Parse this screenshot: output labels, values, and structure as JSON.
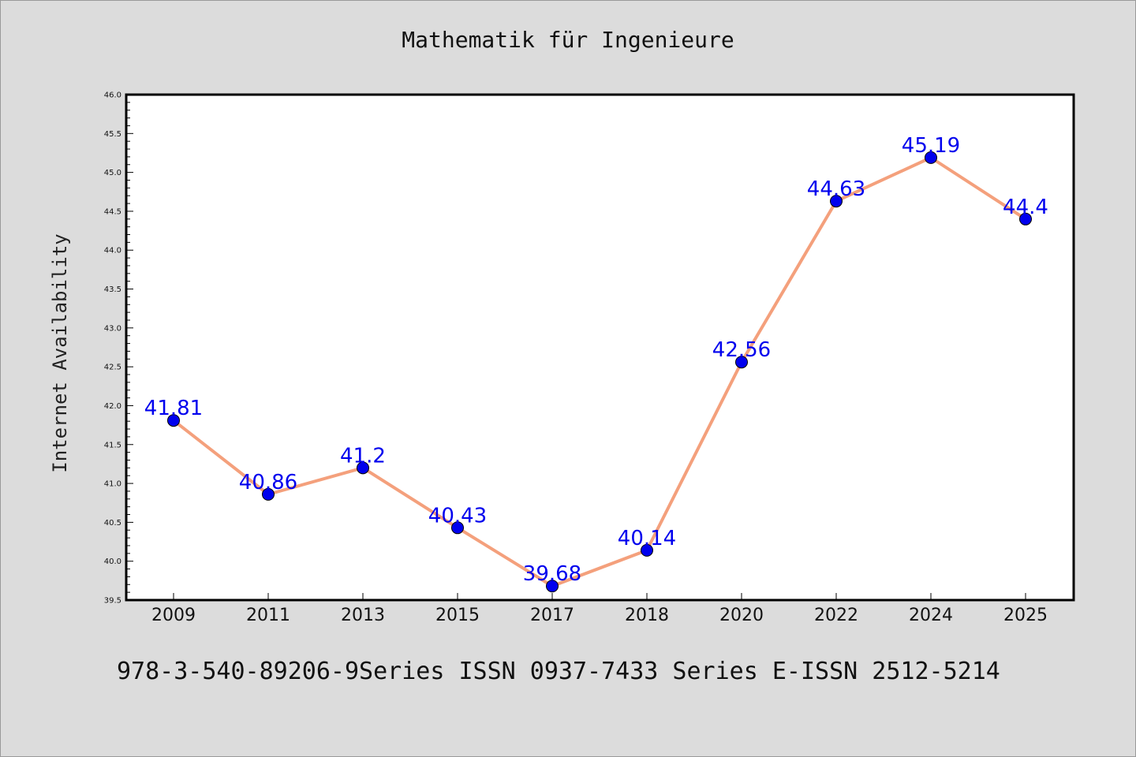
{
  "chart_data": {
    "type": "line",
    "title": "Mathematik für Ingenieure",
    "ylabel": "Internet Availability",
    "xlabel": "",
    "categories": [
      "2009",
      "2011",
      "2013",
      "2015",
      "2017",
      "2018",
      "2020",
      "2022",
      "2024",
      "2025"
    ],
    "series": [
      {
        "values": [
          41.81,
          40.86,
          41.2,
          40.43,
          39.68,
          40.14,
          42.56,
          44.63,
          45.19,
          44.4
        ],
        "data_labels": [
          "41.81",
          "40.86",
          "41.2",
          "40.43",
          "39.68",
          "40.14",
          "42.56",
          "44.63",
          "45.19",
          "44.4"
        ],
        "line_color": "#f4a07c",
        "marker_color": "#0000ee"
      }
    ],
    "ylim": [
      39.5,
      46.0
    ],
    "yticks": [
      "39.5",
      "40.0",
      "40.5",
      "41.0",
      "41.5",
      "42.0",
      "42.5",
      "43.0",
      "43.5",
      "44.0",
      "44.5",
      "45.0",
      "45.5",
      "46.0"
    ],
    "grid": false
  },
  "footer": {
    "text": "978-3-540-89206-9Series ISSN 0937-7433 Series E-ISSN 2512-5214"
  },
  "colors": {
    "background": "#dcdcdc",
    "plot_background": "#ffffff",
    "label_color": "#0000ee"
  }
}
